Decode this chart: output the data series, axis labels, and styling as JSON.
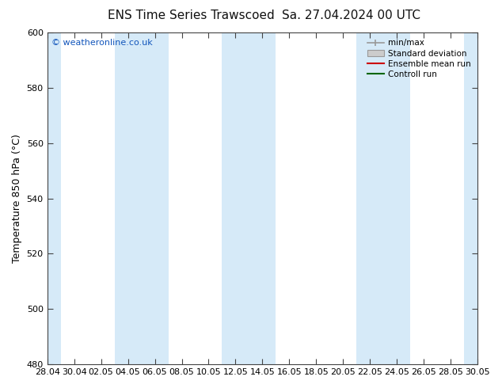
{
  "title_left": "ENS Time Series Trawscoed",
  "title_right": "Sa. 27.04.2024 00 UTC",
  "ylabel": "Temperature 850 hPa (°C)",
  "watermark": "© weatheronline.co.uk",
  "ylim": [
    480,
    600
  ],
  "yticks": [
    480,
    500,
    520,
    540,
    560,
    580,
    600
  ],
  "x_tick_labels": [
    "28.04",
    "30.04",
    "02.05",
    "04.05",
    "06.05",
    "08.05",
    "10.05",
    "12.05",
    "14.05",
    "16.05",
    "18.05",
    "20.05",
    "22.05",
    "24.05",
    "26.05",
    "28.05",
    "30.05"
  ],
  "bg_color": "#ffffff",
  "plot_bg_color": "#ffffff",
  "band_color": "#d6eaf8",
  "legend_minmax_color": "#999999",
  "legend_std_color": "#cccccc",
  "legend_mean_color": "#cc0000",
  "legend_control_color": "#006600",
  "title_fontsize": 11,
  "tick_fontsize": 8,
  "ylabel_fontsize": 9,
  "band_indices": [
    0,
    3,
    4,
    7,
    8,
    12,
    13,
    16,
    17
  ]
}
